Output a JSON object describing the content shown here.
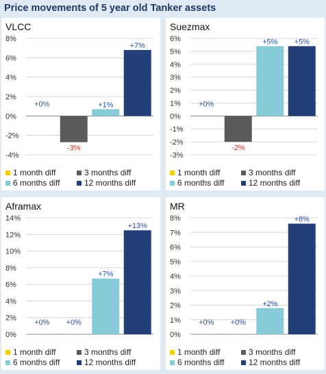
{
  "header": {
    "title": "Price movements of 5 year old Tanker assets"
  },
  "chart_data": [
    {
      "type": "bar",
      "title": "VLCC",
      "categories": [
        "1 month diff",
        "3 months diff",
        "6 months diff",
        "12 months diff"
      ],
      "values": [
        0,
        -2.7,
        0.7,
        6.8
      ],
      "data_labels": [
        "+0%",
        "-3%",
        "+1%",
        "+7%"
      ],
      "ylim": [
        -4,
        8
      ],
      "yticks": [
        -4,
        -2,
        0,
        2,
        4,
        6,
        8
      ],
      "tick_labels": [
        "-4%",
        "-2%",
        "0%",
        "2%",
        "4%",
        "6%",
        "8%"
      ],
      "grid": true,
      "legend": "bottom"
    },
    {
      "type": "bar",
      "title": "Suezmax",
      "categories": [
        "1 month diff",
        "3 months diff",
        "6 months diff",
        "12 months diff"
      ],
      "values": [
        0,
        -2.0,
        5.4,
        5.4
      ],
      "data_labels": [
        "+0%",
        "-2%",
        "+5%",
        "+5%"
      ],
      "ylim": [
        -3,
        6
      ],
      "yticks": [
        -3,
        -2,
        -1,
        0,
        1,
        2,
        3,
        4,
        5,
        6
      ],
      "tick_labels": [
        "-3%",
        "-2%",
        "-1%",
        "0%",
        "1%",
        "2%",
        "3%",
        "4%",
        "5%",
        "6%"
      ],
      "grid": true,
      "legend": "bottom"
    },
    {
      "type": "bar",
      "title": "Aframax",
      "categories": [
        "1 month diff",
        "3 months diff",
        "6 months diff",
        "12 months diff"
      ],
      "values": [
        0,
        0,
        6.7,
        12.5
      ],
      "data_labels": [
        "+0%",
        "+0%",
        "+7%",
        "+13%"
      ],
      "ylim": [
        0,
        14
      ],
      "yticks": [
        0,
        2,
        4,
        6,
        8,
        10,
        12,
        14
      ],
      "tick_labels": [
        "0%",
        "2%",
        "4%",
        "6%",
        "8%",
        "10%",
        "12%",
        "14%"
      ],
      "grid": true,
      "legend": "bottom"
    },
    {
      "type": "bar",
      "title": "MR",
      "categories": [
        "1 month diff",
        "3 months diff",
        "6 months diff",
        "12 months diff"
      ],
      "values": [
        0,
        0,
        1.8,
        7.6
      ],
      "data_labels": [
        "+0%",
        "+0%",
        "+2%",
        "+8%"
      ],
      "ylim": [
        0,
        8
      ],
      "yticks": [
        0,
        1,
        2,
        3,
        4,
        5,
        6,
        7,
        8
      ],
      "tick_labels": [
        "0%",
        "1%",
        "2%",
        "3%",
        "4%",
        "5%",
        "6%",
        "7%",
        "8%"
      ],
      "grid": true,
      "legend": "bottom"
    }
  ],
  "colors": {
    "series": [
      "#f5d000",
      "#5b5b5b",
      "#86cbd8",
      "#233f7a"
    ],
    "label_positive": "#2b4fb0",
    "label_negative": "#d0312d",
    "gridline": "#d6d6d6",
    "axis": "#888888"
  }
}
